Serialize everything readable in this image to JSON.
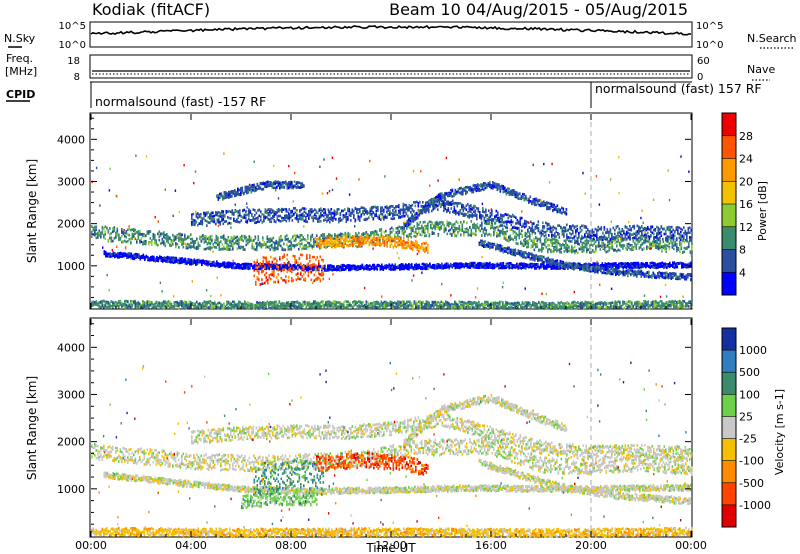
{
  "header": {
    "station": "Kodiak (fitACF)",
    "beam_dates": "Beam 10 04/Aug/2015 - 05/Aug/2015"
  },
  "top_panels": {
    "nsky_label": "N.Sky",
    "nsky_ticks": [
      "10^5",
      "10^0"
    ],
    "nsearch_label": "N.Search",
    "nsearch_ticks": [
      "10^5",
      "10^0"
    ],
    "freq_label_1": "Freq.",
    "freq_label_2": "[MHz]",
    "freq_ticks": [
      "18",
      "8"
    ],
    "nave_label": "Nave",
    "nave_ticks": [
      "60",
      "0"
    ],
    "cpid_label": "CPID",
    "cpid_segments": [
      "normalsound (fast) -157 RF",
      "normalsound (fast) 157 RF"
    ]
  },
  "chart_data": [
    {
      "type": "heatmap",
      "panel": "power",
      "xlabel": "Time UT",
      "ylabel": "Slant Range [km]",
      "x_ticks": [
        "00:00",
        "04:00",
        "08:00",
        "12:00",
        "16:00",
        "20:00",
        "00:00"
      ],
      "x_hours": [
        0,
        4,
        8,
        12,
        16,
        20,
        24
      ],
      "ylim": [
        0,
        4600
      ],
      "y_ticks": [
        1000,
        2000,
        3000,
        4000
      ],
      "colorbar": {
        "label": "Power [dB]",
        "ticks": [
          "28",
          "24",
          "20",
          "16",
          "12",
          "8",
          "4"
        ],
        "colors": [
          "#ee0000",
          "#ff5500",
          "#ff9900",
          "#f2c200",
          "#8dcc2f",
          "#3b8c6e",
          "#2a4f9e",
          "#0000ff"
        ]
      },
      "bands": [
        {
          "t": [
            0,
            4,
            7,
            11,
            13,
            16,
            18,
            20,
            22,
            24
          ],
          "r": [
            1820,
            1600,
            1560,
            1660,
            1900,
            1920,
            1520,
            1500,
            1580,
            1480
          ],
          "w": 170,
          "c": 5
        },
        {
          "t": [
            0.5,
            3,
            6,
            9,
            12,
            15,
            19,
            24
          ],
          "r": [
            1320,
            1180,
            1020,
            980,
            1000,
            1040,
            1020,
            1050
          ],
          "w": 60,
          "c": 7
        },
        {
          "t": [
            6.5,
            7.5,
            8.5,
            9.3
          ],
          "r": [
            880,
            960,
            1000,
            900
          ],
          "w": 330,
          "c": 1
        },
        {
          "t": [
            4,
            6,
            8,
            10,
            12,
            14,
            16,
            18,
            20,
            22,
            24
          ],
          "r": [
            2120,
            2200,
            2240,
            2220,
            2300,
            2500,
            2200,
            1900,
            1800,
            1820,
            1780
          ],
          "w": 160,
          "c": 6
        },
        {
          "t": [
            9,
            11,
            12.5,
            13.5
          ],
          "r": [
            1560,
            1640,
            1560,
            1440
          ],
          "w": 120,
          "c": 2
        },
        {
          "t": [
            15.5,
            17.5,
            19,
            21,
            24
          ],
          "r": [
            1580,
            1260,
            1040,
            880,
            760
          ],
          "w": 70,
          "c": 6
        },
        {
          "t": [
            12.5,
            14,
            16,
            17.5,
            19
          ],
          "r": [
            1980,
            2700,
            2950,
            2600,
            2300
          ],
          "w": 80,
          "c": 6
        },
        {
          "t": [
            5,
            7,
            8.5
          ],
          "r": [
            2650,
            2950,
            2950
          ],
          "w": 80,
          "c": 6
        },
        {
          "t": [
            0,
            6,
            12,
            18,
            24
          ],
          "r": [
            120,
            100,
            110,
            90,
            120
          ],
          "w": 80,
          "c": 5
        }
      ]
    },
    {
      "type": "heatmap",
      "panel": "velocity",
      "xlabel": "Time UT",
      "ylabel": "Slant Range [km]",
      "x_ticks": [
        "00:00",
        "04:00",
        "08:00",
        "12:00",
        "16:00",
        "20:00",
        "00:00"
      ],
      "x_hours": [
        0,
        4,
        8,
        12,
        16,
        20,
        24
      ],
      "ylim": [
        0,
        4600
      ],
      "y_ticks": [
        1000,
        2000,
        3000,
        4000
      ],
      "colorbar": {
        "label": "Velocity [m s-1]",
        "ticks": [
          "1000",
          "500",
          "100",
          "25",
          "-25",
          "-100",
          "-500",
          "-1000"
        ],
        "colors": [
          "#1430a0",
          "#2f7fc0",
          "#3b8c6e",
          "#6ed04a",
          "#c8c8c8",
          "#f5c000",
          "#ff8c00",
          "#ff4400",
          "#e00000"
        ]
      },
      "bands": [
        {
          "t": [
            0,
            4,
            7,
            11,
            13,
            16,
            18,
            20,
            22,
            24
          ],
          "r": [
            1820,
            1600,
            1560,
            1660,
            1900,
            1920,
            1520,
            1500,
            1580,
            1480
          ],
          "w": 170,
          "c": 4
        },
        {
          "t": [
            0.5,
            3,
            6,
            9,
            12,
            15,
            19,
            24
          ],
          "r": [
            1320,
            1180,
            1020,
            980,
            1000,
            1040,
            1020,
            1050
          ],
          "w": 60,
          "c": 4
        },
        {
          "t": [
            6.5,
            7.5,
            8.5,
            9.3
          ],
          "r": [
            1150,
            1280,
            1350,
            1150
          ],
          "w": 320,
          "c": 2
        },
        {
          "t": [
            6,
            7.5,
            9
          ],
          "r": [
            760,
            820,
            820
          ],
          "w": 140,
          "c": 3
        },
        {
          "t": [
            9,
            11,
            12.5,
            13.5
          ],
          "r": [
            1560,
            1640,
            1560,
            1440
          ],
          "w": 160,
          "c": 7
        },
        {
          "t": [
            4,
            6,
            8,
            10,
            12,
            14,
            16,
            18,
            20,
            22,
            24
          ],
          "r": [
            2120,
            2200,
            2240,
            2220,
            2300,
            2500,
            2200,
            1900,
            1800,
            1820,
            1780
          ],
          "w": 140,
          "c": 4
        },
        {
          "t": [
            15.5,
            17.5,
            19,
            21,
            24
          ],
          "r": [
            1580,
            1260,
            1040,
            880,
            760
          ],
          "w": 70,
          "c": 4
        },
        {
          "t": [
            12.5,
            14,
            16,
            17.5,
            19
          ],
          "r": [
            1980,
            2700,
            2950,
            2600,
            2300
          ],
          "w": 80,
          "c": 4
        },
        {
          "t": [
            0,
            6,
            12,
            18,
            24
          ],
          "r": [
            120,
            100,
            110,
            90,
            120
          ],
          "w": 80,
          "c": 5
        }
      ]
    }
  ]
}
